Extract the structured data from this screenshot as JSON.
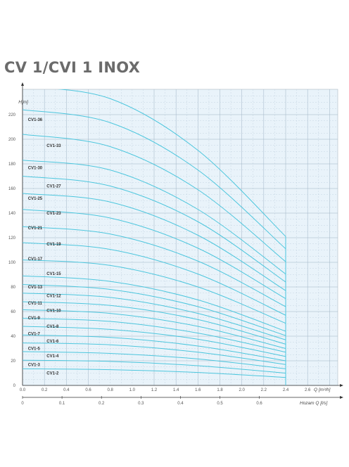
{
  "title": "CV 1/CVI 1 INOX",
  "chart_data": {
    "type": "line",
    "title": "CV 1/CVI 1 INOX",
    "ylabel": "H[m]",
    "xlabel": "Q [m³/h]",
    "x2label": "Hozam Q [l/s]",
    "xlim": [
      0,
      2.8
    ],
    "ylim": [
      0,
      230
    ],
    "x2lim": [
      0,
      0.7778
    ],
    "x_ticks": [
      "0.0",
      "0.2",
      "0.4",
      "0.6",
      "0.8",
      "1.0",
      "1.2",
      "1.4",
      "1.6",
      "1.8",
      "2.0",
      "2.2",
      "2.4",
      "2.6"
    ],
    "x2_ticks": [
      "0",
      "0.1",
      "0.2",
      "0.3",
      "0.4",
      "0.5",
      "0.6"
    ],
    "y_ticks": [
      "0",
      "20",
      "40",
      "60",
      "80",
      "100",
      "120",
      "140",
      "160",
      "180",
      "200",
      "220"
    ],
    "grid": true,
    "line_color": "#4cc6dd",
    "series": [
      {
        "name": "CV1-2",
        "values": [
          [
            0,
            13.5
          ],
          [
            0.8,
            12.8
          ],
          [
            1.6,
            10.5
          ],
          [
            2.4,
            6.5
          ]
        ]
      },
      {
        "name": "CV1-3",
        "values": [
          [
            0,
            20.5
          ],
          [
            0.8,
            19.5
          ],
          [
            1.6,
            16
          ],
          [
            2.4,
            10
          ]
        ]
      },
      {
        "name": "CV1-4",
        "values": [
          [
            0,
            27.5
          ],
          [
            0.8,
            26
          ],
          [
            1.6,
            21.5
          ],
          [
            2.4,
            13.5
          ]
        ]
      },
      {
        "name": "CV1-5",
        "values": [
          [
            0,
            34.5
          ],
          [
            0.8,
            33
          ],
          [
            1.6,
            27
          ],
          [
            2.4,
            17
          ]
        ]
      },
      {
        "name": "CV1-6",
        "values": [
          [
            0,
            41
          ],
          [
            0.8,
            39
          ],
          [
            1.6,
            32
          ],
          [
            2.4,
            20
          ]
        ]
      },
      {
        "name": "CV1-7",
        "values": [
          [
            0,
            48
          ],
          [
            0.8,
            45.5
          ],
          [
            1.6,
            37.5
          ],
          [
            2.4,
            23.5
          ]
        ]
      },
      {
        "name": "CV1-8",
        "values": [
          [
            0,
            54.5
          ],
          [
            0.8,
            52
          ],
          [
            1.6,
            42.5
          ],
          [
            2.4,
            27
          ]
        ]
      },
      {
        "name": "CV1-9",
        "values": [
          [
            0,
            61.5
          ],
          [
            0.8,
            58.5
          ],
          [
            1.6,
            48
          ],
          [
            2.4,
            30
          ]
        ]
      },
      {
        "name": "CV1-10",
        "values": [
          [
            0,
            68
          ],
          [
            0.8,
            65
          ],
          [
            1.6,
            53.5
          ],
          [
            2.4,
            33.5
          ]
        ]
      },
      {
        "name": "CV1-11",
        "values": [
          [
            0,
            75
          ],
          [
            0.8,
            71.5
          ],
          [
            1.6,
            58.5
          ],
          [
            2.4,
            37
          ]
        ]
      },
      {
        "name": "CV1-12",
        "values": [
          [
            0,
            82
          ],
          [
            0.8,
            78
          ],
          [
            1.6,
            64
          ],
          [
            2.4,
            40.5
          ]
        ]
      },
      {
        "name": "CV1-13",
        "values": [
          [
            0,
            89
          ],
          [
            0.8,
            84.5
          ],
          [
            1.6,
            69.5
          ],
          [
            2.4,
            44
          ]
        ]
      },
      {
        "name": "CV1-15",
        "values": [
          [
            0,
            102
          ],
          [
            0.8,
            97.5
          ],
          [
            1.6,
            80
          ],
          [
            2.4,
            50.5
          ]
        ]
      },
      {
        "name": "CV1-17",
        "values": [
          [
            0,
            116
          ],
          [
            0.8,
            110.5
          ],
          [
            1.6,
            90.5
          ],
          [
            2.4,
            57
          ]
        ]
      },
      {
        "name": "CV1-19",
        "values": [
          [
            0,
            129
          ],
          [
            0.8,
            123
          ],
          [
            1.6,
            101
          ],
          [
            2.4,
            64
          ]
        ]
      },
      {
        "name": "CV1-21",
        "values": [
          [
            0,
            143
          ],
          [
            0.8,
            136
          ],
          [
            1.6,
            111.5
          ],
          [
            2.4,
            70.5
          ]
        ]
      },
      {
        "name": "CV1-23",
        "values": [
          [
            0,
            156
          ],
          [
            0.8,
            149
          ],
          [
            1.6,
            122
          ],
          [
            2.4,
            77
          ]
        ]
      },
      {
        "name": "CV1-25",
        "values": [
          [
            0,
            170
          ],
          [
            0.8,
            162
          ],
          [
            1.6,
            133
          ],
          [
            2.4,
            84
          ]
        ]
      },
      {
        "name": "CV1-27",
        "values": [
          [
            0,
            183
          ],
          [
            0.8,
            175
          ],
          [
            1.6,
            143
          ],
          [
            2.4,
            90.5
          ]
        ]
      },
      {
        "name": "CV1-30",
        "values": [
          [
            0,
            204
          ],
          [
            0.8,
            194
          ],
          [
            1.6,
            159
          ],
          [
            2.4,
            100.5
          ]
        ]
      },
      {
        "name": "CV1-33",
        "values": [
          [
            0,
            224
          ],
          [
            0.8,
            213.5
          ],
          [
            1.6,
            175
          ],
          [
            2.4,
            111
          ]
        ]
      },
      {
        "name": "CV1-36",
        "values": [
          [
            0,
            243
          ],
          [
            0.8,
            233
          ],
          [
            1.6,
            191
          ],
          [
            2.4,
            121
          ]
        ]
      }
    ],
    "labels": [
      {
        "text": "CV1-36",
        "x": 0.05,
        "y": 216
      },
      {
        "text": "CV1-33",
        "x": 0.22,
        "y": 195
      },
      {
        "text": "CV1-30",
        "x": 0.05,
        "y": 177
      },
      {
        "text": "CV1-27",
        "x": 0.22,
        "y": 162
      },
      {
        "text": "CV1-25",
        "x": 0.05,
        "y": 152
      },
      {
        "text": "CV1-23",
        "x": 0.22,
        "y": 140
      },
      {
        "text": "CV1-21",
        "x": 0.05,
        "y": 128
      },
      {
        "text": "CV1-19",
        "x": 0.22,
        "y": 115
      },
      {
        "text": "CV1-17",
        "x": 0.05,
        "y": 103
      },
      {
        "text": "CV1-15",
        "x": 0.22,
        "y": 91
      },
      {
        "text": "CV1-13",
        "x": 0.05,
        "y": 80
      },
      {
        "text": "CV1-12",
        "x": 0.22,
        "y": 73
      },
      {
        "text": "CV1-11",
        "x": 0.05,
        "y": 67
      },
      {
        "text": "CV1-10",
        "x": 0.22,
        "y": 61
      },
      {
        "text": "CV1-9",
        "x": 0.05,
        "y": 55
      },
      {
        "text": "CV1-8",
        "x": 0.22,
        "y": 48
      },
      {
        "text": "CV1-7",
        "x": 0.05,
        "y": 42
      },
      {
        "text": "CV1-6",
        "x": 0.22,
        "y": 36
      },
      {
        "text": "CV1-5",
        "x": 0.05,
        "y": 30
      },
      {
        "text": "CV1-4",
        "x": 0.22,
        "y": 24
      },
      {
        "text": "CV1-3",
        "x": 0.05,
        "y": 17
      },
      {
        "text": "CV1-2",
        "x": 0.22,
        "y": 10
      }
    ]
  }
}
